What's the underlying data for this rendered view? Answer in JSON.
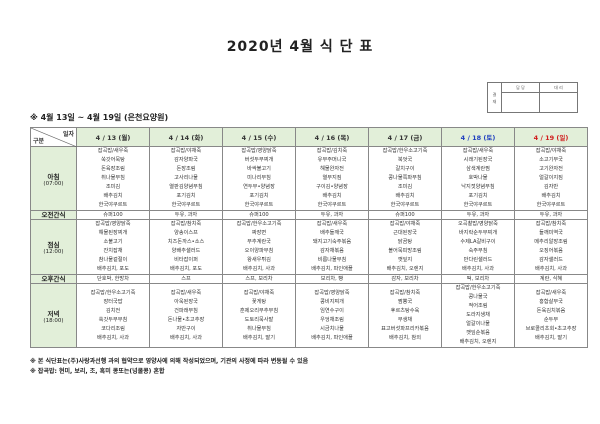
{
  "title": "2020년 4월 식 단 표",
  "approval": {
    "label": "결\n재",
    "cols": [
      "담 당",
      "대 리"
    ]
  },
  "subtitle": "※ 4월 13일 ~ 4월 19일 (은천요양원)",
  "corner": {
    "top": "일자",
    "bottom": "구분"
  },
  "colors": {
    "header_bg": "#e2efd9",
    "saturday": "#1f3fbf",
    "sunday": "#d01c1c"
  },
  "days": [
    "4 / 13 (월)",
    "4 / 14 (화)",
    "4 / 15 (수)",
    "4 / 16 (목)",
    "4 / 17 (금)",
    "4 / 18 (토)",
    "4 / 19 (일)"
  ],
  "rows": [
    {
      "label": "아침",
      "time": "(07:00)",
      "cells": [
        [
          "잡곡밥/새우죽",
          "쑥갓어묵탕",
          "돈육장조림",
          "취나물무침",
          "조미김",
          "배추김치",
          "한국야쿠르트"
        ],
        [
          "잡곡밥/야채죽",
          "감자양파국",
          "돈장조림",
          "고사리나물",
          "열판김양념무침",
          "포기김치",
          "한국야쿠르트"
        ],
        [
          "잡곡밥/영양닭죽",
          "버섯두부찌개",
          "바싹불고기",
          "미나리무침",
          "연두부•양념장",
          "포기김치",
          "한국야쿠르트"
        ],
        [
          "잡곡밥/김치죽",
          "유부주머니국",
          "해물완자전",
          "열무지짐",
          "구이김•양념장",
          "배추김치",
          "한국야쿠르트"
        ],
        [
          "잡곡밥/한우소고기죽",
          "북엇국",
          "갈치구이",
          "콩나물쪽파무침",
          "조미김",
          "배추김치",
          "한국야쿠르트"
        ],
        [
          "잡곡밥/새우죽",
          "시래기된장국",
          "삼색계란찜",
          "호박나물",
          "낙지젓양념무침",
          "포기김치",
          "한국야쿠르트"
        ],
        [
          "잡곡밥/야채죽",
          "소고기무국",
          "고기완자전",
          "얼갈이지짐",
          "김자반",
          "배추김치",
          "한국야쿠르트"
        ]
      ]
    },
    {
      "label": "오전간식",
      "snack": true,
      "cells": [
        "슈퍼100",
        "두유, 과자",
        "슈퍼100",
        "두유, 과자",
        "슈퍼100",
        "두유, 과자",
        "두유, 과자"
      ]
    },
    {
      "label": "점심",
      "time": "(12:00)",
      "cells": [
        [
          "잡곡밥/영양닭죽",
          "해물된장찌개",
          "소불고기",
          "잔치잡채",
          "참나물겉절이",
          "배추김치, 포도"
        ],
        [
          "잡곡밥/참치죽",
          "양송이스프",
          "치즈돈까스•소스",
          "양배추샐러드",
          "비타잡이퍼",
          "배추김치, 포도"
        ],
        [
          "잡곡밥/한우소고기죽",
          "짜장면",
          "부추계란국",
          "오이양파무침",
          "왕새우튀김",
          "배추김치, 사과"
        ],
        [
          "잡곡밥/새우죽",
          "배추들깨국",
          "돼지고기숙주볶음",
          "감자채볶음",
          "비름나물무침",
          "배추김치, 파인애플"
        ],
        [
          "잡곡밥/야채죽",
          "근대된장국",
          "닭곰탕",
          "볼어묵피망조림",
          "깻잎지",
          "배추김치, 오렌지"
        ],
        [
          "오곡찰밥/영양닭죽",
          "바지락순두부찌개",
          "수제LA갈비구이",
          "숙주무침",
          "만다린샐러드",
          "배추김치, 사과"
        ],
        [
          "잡곡밥/참치죽",
          "들깨미역국",
          "메추리알장조림",
          "오징어볶음",
          "감자샐러드",
          "배추김치, 사과"
        ]
      ]
    },
    {
      "label": "오후간식",
      "snack": true,
      "cells": [
        "단호박, 한방차",
        "스프",
        "스프, 보리차",
        "보리차, 빵",
        "감자, 보리차",
        "떡, 보리차",
        "계란, 식혜"
      ]
    },
    {
      "label": "저녁",
      "time": "(18:00)",
      "cells": [
        [
          "잡곡밥/한우소고기죽",
          "장터국밥",
          "김치전",
          "쑥갓두부무침",
          "코다리조림",
          "배추김치, 사과"
        ],
        [
          "잡곡밥/새우죽",
          "아욱된장국",
          "건파래무침",
          "돈나물•초고추장",
          "자반구이",
          "배추김치, 사과"
        ],
        [
          "잡곡밥/야채죽",
          "꽃게탕",
          "훈제오리부추무침",
          "도토리묵사발",
          "취나물무침",
          "배추김치, 딸기"
        ],
        [
          "잡곡밥/영양닭죽",
          "콩비지찌개",
          "임연수구이",
          "우엉채조림",
          "시금치나물",
          "배추김치, 파인애플"
        ],
        [
          "잡곡밥/참치죽",
          "짬뽕국",
          "후르츠탕수육",
          "무생채",
          "표고버섯파프리카볶음",
          "배추김치, 참외"
        ],
        [
          "잡곡밥/한우소고기죽",
          "콩나물국",
          "적어조림",
          "도라지생채",
          "얼갈이나물",
          "깻잎순볶음",
          "배추김치, 오렌지"
        ],
        [
          "잡곡밥/새우죽",
          "홍합살무국",
          "돈육김치볶음",
          "순두부",
          "브로콜리초회•초고추장",
          "배추김치, 딸기"
        ]
      ]
    }
  ],
  "notes": [
    "※ 본 식단표는(주)사랑과선행 과의 협약으로 영양사에 의해 작성되었으며, 기관의 사정에 따라 변동될 수 있음",
    "※ 잡곡밥: 현미, 보리, 조, 흑미 콩또는(넝쿨콩) 혼합"
  ]
}
